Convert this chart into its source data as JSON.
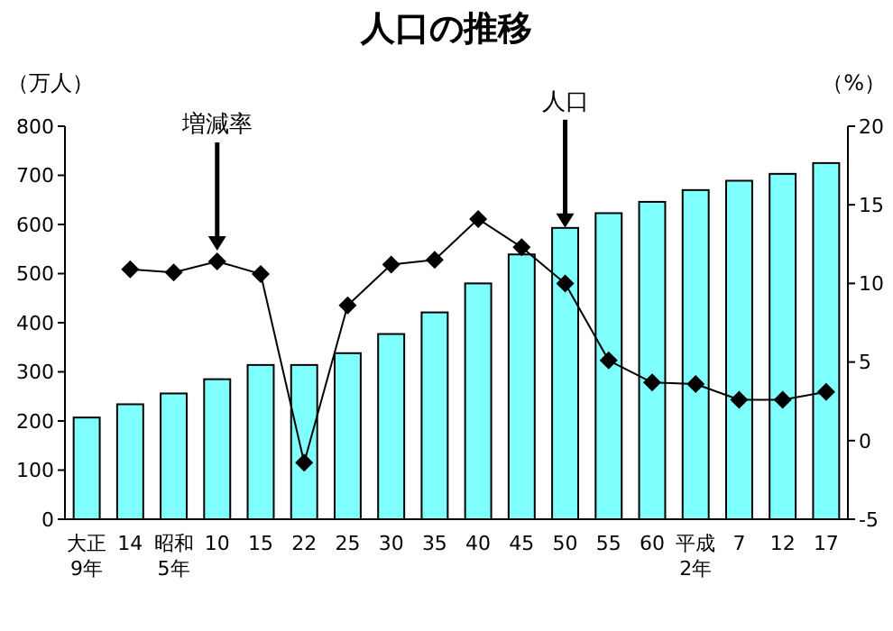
{
  "chart_data": {
    "type": "bar",
    "title": "人口の推移",
    "ylabel": "（万人）",
    "y2label": "（%）",
    "categories": [
      "大正\n9年",
      "14",
      "昭和\n5年",
      "10",
      "15",
      "22",
      "25",
      "30",
      "35",
      "40",
      "45",
      "50",
      "55",
      "60",
      "平成\n2年",
      "7",
      "12",
      "17"
    ],
    "series": [
      {
        "color": "#80ffff",
        "values": [
          207,
          234,
          256,
          285,
          314,
          314,
          338,
          377,
          421,
          480,
          539,
          593,
          623,
          646,
          670,
          689,
          703,
          725
        ]
      },
      {
        "type": "line",
        "axis": "y2",
        "color": "#000000",
        "marker": "diamond",
        "values": [
          null,
          10.9,
          10.7,
          11.4,
          10.6,
          -1.4,
          8.6,
          11.2,
          11.5,
          14.1,
          12.3,
          10.0,
          5.1,
          3.7,
          3.6,
          2.6,
          2.6,
          3.1
        ]
      }
    ],
    "ylim": [
      0,
      800
    ],
    "yticks": [
      0,
      100,
      200,
      300,
      400,
      500,
      600,
      700,
      800
    ],
    "y2lim": [
      -5,
      20
    ],
    "y2ticks": [
      -5,
      0,
      5,
      10,
      15,
      20
    ],
    "annotations": [
      {
        "text": "増減率",
        "x": "10"
      },
      {
        "text": "人口",
        "x": "50"
      }
    ],
    "grid": false
  }
}
